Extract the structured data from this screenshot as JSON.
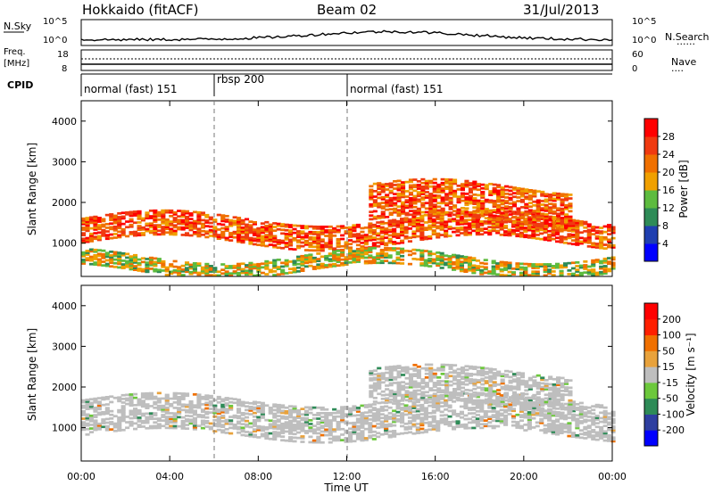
{
  "header": {
    "station": "Hokkaido (fitACF)",
    "beam": "Beam 02",
    "date": "31/Jul/2013"
  },
  "noise_panel": {
    "left_label": "N.Sky",
    "right_label": "N.Search",
    "right_key": "......",
    "left_ticks": [
      "10^5",
      "10^0"
    ],
    "right_ticks": [
      "10^5",
      "10^0"
    ]
  },
  "freq_panel": {
    "left_label_1": "Freq.",
    "left_label_2": "[MHz]",
    "right_label": "Nave",
    "right_key": "....",
    "left_ticks": [
      "18",
      "8"
    ],
    "right_ticks": [
      "60",
      "0"
    ]
  },
  "cpid_panel": {
    "label": "CPID",
    "segments": [
      {
        "text": "normal (fast) 151",
        "start_hour": 0
      },
      {
        "text": "rbsp 200",
        "start_hour": 6
      },
      {
        "text": "normal (fast) 151",
        "start_hour": 12
      }
    ]
  },
  "colors": {
    "power_scale": [
      "#0000ff",
      "#1f3fb0",
      "#2e8b57",
      "#5dbb3f",
      "#f0a000",
      "#f07000",
      "#f03a10",
      "#ff0000"
    ],
    "velocity_scale": [
      "#0000ff",
      "#2e3fa0",
      "#2e8b57",
      "#6cc83c",
      "#bebebe",
      "#e8a23c",
      "#f07000",
      "#ff2000",
      "#ff0000"
    ],
    "velocity_gray": "#bebebe"
  },
  "chart_data": [
    {
      "type": "heatmap",
      "title": "Power",
      "xlabel": "Time UT",
      "ylabel": "Slant Range [km]",
      "xlim": [
        0,
        24
      ],
      "ylim": [
        180,
        4500
      ],
      "x_ticks": [
        "00:00",
        "04:00",
        "08:00",
        "12:00",
        "16:00",
        "20:00",
        "00:00"
      ],
      "y_ticks": [
        "1000",
        "2000",
        "3000",
        "4000"
      ],
      "colorbar": {
        "label": "Power [dB]",
        "ticks": [
          "4",
          "8",
          "12",
          "16",
          "20",
          "24",
          "28"
        ],
        "range": [
          0,
          30
        ]
      },
      "bands": [
        {
          "range_km": [
            1000,
            1600
          ],
          "hours": [
            0,
            24
          ],
          "dominant_value_db": 24
        },
        {
          "range_km": [
            1500,
            2400
          ],
          "hours": [
            13,
            22
          ],
          "dominant_value_db": 24
        },
        {
          "range_km": [
            300,
            700
          ],
          "hours": [
            0,
            24
          ],
          "dominant_value_db": 16
        }
      ]
    },
    {
      "type": "heatmap",
      "title": "Velocity",
      "xlabel": "Time UT",
      "ylabel": "Slant Range [km]",
      "xlim": [
        0,
        24
      ],
      "ylim": [
        180,
        4500
      ],
      "x_ticks": [
        "00:00",
        "04:00",
        "08:00",
        "12:00",
        "16:00",
        "20:00",
        "00:00"
      ],
      "y_ticks": [
        "1000",
        "2000",
        "3000",
        "4000"
      ],
      "colorbar": {
        "label": "Velocity [m s⁻¹]",
        "ticks": [
          "200",
          "100",
          "50",
          "15",
          "-15",
          "-50",
          "-100",
          "-200"
        ],
        "range": [
          -250,
          250
        ]
      },
      "bands": [
        {
          "range_km": [
            800,
            1700
          ],
          "hours": [
            0,
            24
          ],
          "dominant_value_ms": 0
        },
        {
          "range_km": [
            1500,
            2400
          ],
          "hours": [
            13,
            22
          ],
          "dominant_value_ms": 0
        }
      ]
    }
  ]
}
